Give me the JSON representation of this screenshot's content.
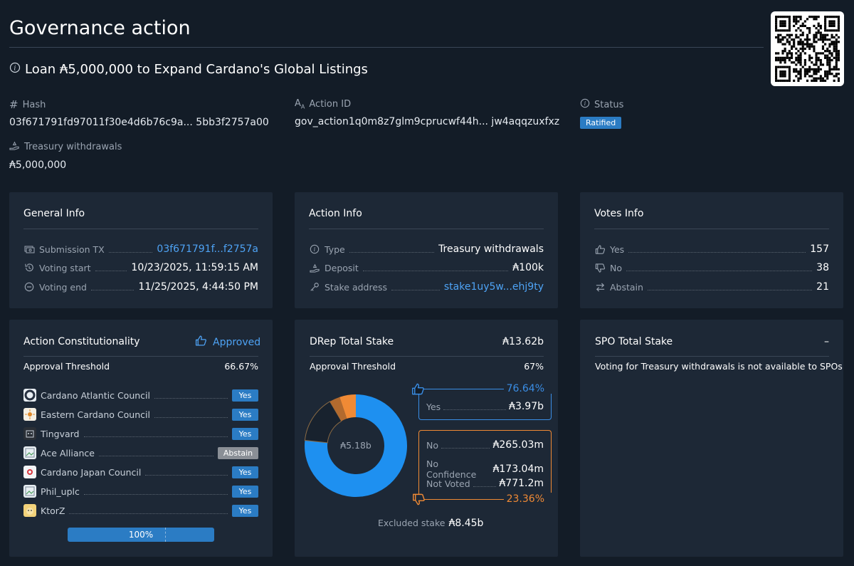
{
  "header": {
    "title": "Governance action",
    "subtitle": "Loan ₳5,000,000 to Expand Cardano's Global Listings"
  },
  "meta": {
    "hash_label": "Hash",
    "hash_value": "03f671791fd97011f30e4d6b76c9a... 5bb3f2757a00",
    "action_id_label": "Action ID",
    "action_id_value": "gov_action1q0m8z7glm9cprucwf44h... jw4aqqzuxfxz",
    "status_label": "Status",
    "status_value": "Ratified",
    "withdrawals_label": "Treasury withdrawals",
    "withdrawals_value": "₳5,000,000"
  },
  "general_info": {
    "title": "General Info",
    "submission_tx_label": "Submission TX",
    "submission_tx_value": "03f671791f...f2757a",
    "voting_start_label": "Voting start",
    "voting_start_value": "10/23/2025, 11:59:15 AM",
    "voting_end_label": "Voting end",
    "voting_end_value": "11/25/2025, 4:44:50 PM"
  },
  "action_info": {
    "title": "Action Info",
    "type_label": "Type",
    "type_value": "Treasury withdrawals",
    "deposit_label": "Deposit",
    "deposit_value": "₳100k",
    "stake_label": "Stake address",
    "stake_value": "stake1uy5w...ehj9ty"
  },
  "votes_info": {
    "title": "Votes Info",
    "yes_label": "Yes",
    "yes_value": "157",
    "no_label": "No",
    "no_value": "38",
    "abstain_label": "Abstain",
    "abstain_value": "21"
  },
  "constitutionality": {
    "title": "Action Constitutionality",
    "result": "Approved",
    "threshold_label": "Approval Threshold",
    "threshold_value": "66.67%",
    "members": [
      {
        "name": "Cardano Atlantic Council",
        "vote": "Yes"
      },
      {
        "name": "Eastern Cardano Council",
        "vote": "Yes"
      },
      {
        "name": "Tingvard",
        "vote": "Yes"
      },
      {
        "name": "Ace Alliance",
        "vote": "Abstain"
      },
      {
        "name": "Cardano Japan Council",
        "vote": "Yes"
      },
      {
        "name": "Phil_uplc",
        "vote": "Yes"
      },
      {
        "name": "KtorZ",
        "vote": "Yes"
      }
    ],
    "progress_label": "100%",
    "progress_fraction": 1.0
  },
  "drep": {
    "title": "DRep Total Stake",
    "total": "₳13.62b",
    "threshold_label": "Approval Threshold",
    "threshold_value": "67%",
    "center_label": "₳5.18b",
    "yes_pct": "76.64%",
    "yes_label": "Yes",
    "yes_value": "₳3.97b",
    "no_label": "No",
    "no_value": "₳265.03m",
    "no_confidence_label": "No Confidence",
    "no_confidence_value": "₳173.04m",
    "not_voted_label": "Not Voted",
    "not_voted_value": "₳771.2m",
    "no_pct": "23.36%",
    "excluded_label": "Excluded stake",
    "excluded_value": "₳8.45b"
  },
  "drep_chart": {
    "type": "pie",
    "slices": [
      {
        "label": "Yes",
        "value": 3.97,
        "color": "#1e90f0"
      },
      {
        "label": "Not Voted",
        "value": 0.7712,
        "color": "#18222e"
      },
      {
        "label": "No Confidence",
        "value": 0.17304,
        "color": "#b26a2e"
      },
      {
        "label": "No",
        "value": 0.26503,
        "color": "#f08a35"
      }
    ]
  },
  "spo": {
    "title": "SPO Total Stake",
    "total": "–",
    "message": "Voting for Treasury withdrawals is not available to SPOs"
  },
  "colors": {
    "accent_blue": "#2b7cc4",
    "link_blue": "#4ea3f5",
    "orange": "#f08a35",
    "abstain_gray": "#8a8f96"
  }
}
